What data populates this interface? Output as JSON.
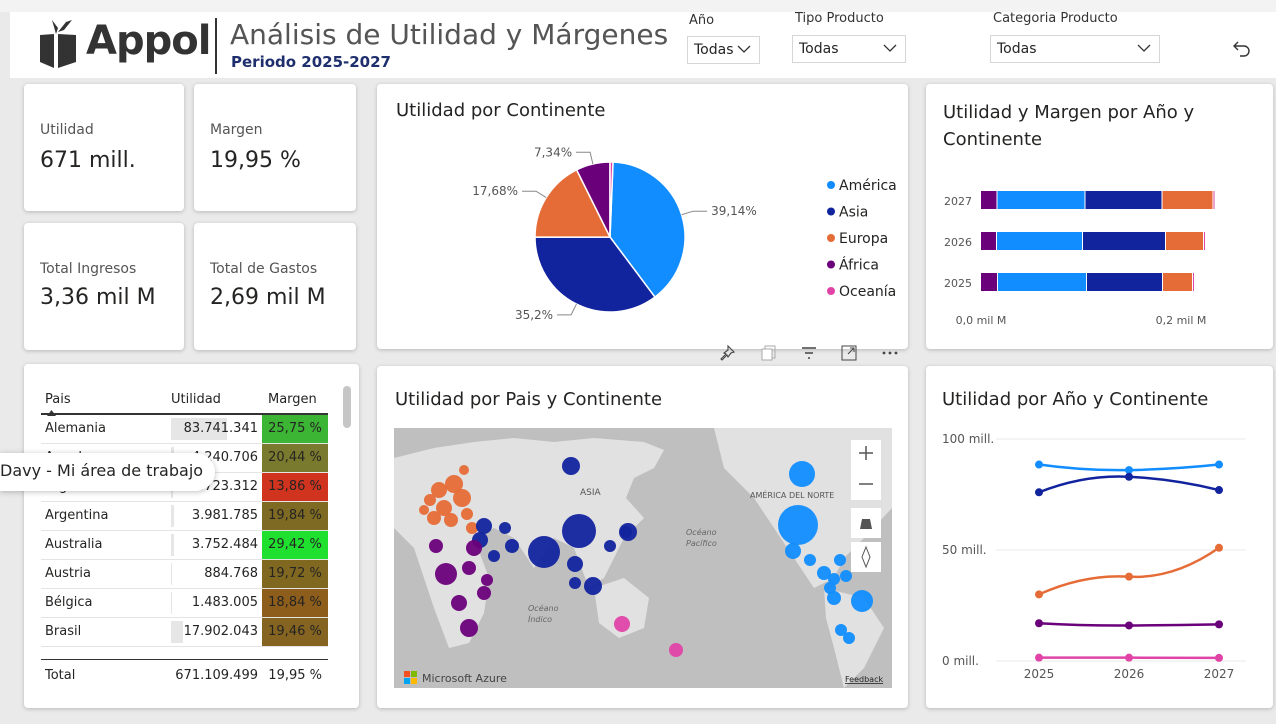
{
  "header": {
    "brand": "Appol",
    "title": "Análisis de Utilidad y Márgenes",
    "period": "Periodo 2025-2027"
  },
  "slicers": {
    "year": {
      "label": "Año",
      "value": "Todas"
    },
    "product_type": {
      "label": "Tipo Producto",
      "value": "Todas"
    },
    "category": {
      "label": "Categoria Producto",
      "value": "Todas"
    }
  },
  "kpis": {
    "utilidad": {
      "label": "Utilidad",
      "value": "671 mill."
    },
    "margen": {
      "label": "Margen",
      "value": "19,95 %"
    },
    "ingresos": {
      "label": "Total Ingresos",
      "value": "3,36 mil M"
    },
    "gastos": {
      "label": "Total de Gastos",
      "value": "2,69 mil M"
    }
  },
  "tooltip": "Davy - Mi área de trabajo",
  "table": {
    "headers": [
      "Pais",
      "Utilidad",
      "Margen"
    ],
    "rows": [
      {
        "pais": "Alemania",
        "utilidad": "83.741.341",
        "margen": "25,75 %",
        "bar": 0.62,
        "color": "#3cb534"
      },
      {
        "pais": "Angola",
        "utilidad": "4.240.706",
        "margen": "20,44 %",
        "bar": 0.03,
        "color": "#7a7a2e"
      },
      {
        "pais": "Argelia",
        "utilidad": "2.723.312",
        "margen": "13,86 %",
        "bar": 0.02,
        "color": "#d0341f"
      },
      {
        "pais": "Argentina",
        "utilidad": "3.981.785",
        "margen": "19,84 %",
        "bar": 0.03,
        "color": "#7e6a22"
      },
      {
        "pais": "Australia",
        "utilidad": "3.752.484",
        "margen": "29,42 %",
        "bar": 0.03,
        "color": "#1fe02f"
      },
      {
        "pais": "Austria",
        "utilidad": "884.768",
        "margen": "19,72 %",
        "bar": 0.01,
        "color": "#806820"
      },
      {
        "pais": "Bélgica",
        "utilidad": "1.483.005",
        "margen": "18,84 %",
        "bar": 0.01,
        "color": "#8d5d1b"
      },
      {
        "pais": "Brasil",
        "utilidad": "17.902.043",
        "margen": "19,46 %",
        "bar": 0.13,
        "color": "#846420"
      }
    ],
    "total": {
      "label": "Total",
      "utilidad": "671.109.499",
      "margen": "19,95 %"
    }
  },
  "colors": {
    "america": "#118dff",
    "asia": "#12239e",
    "europa": "#e66c37",
    "africa": "#6b007b",
    "oceania": "#e044a7"
  },
  "map": {
    "labels": [
      "ASIA",
      "AMÉRICA DEL NORTE",
      "Océano Pacífico",
      "Océano Índico"
    ],
    "attribution": "Microsoft Azure",
    "feedback": "Feedback"
  },
  "chart_data": [
    {
      "id": "pie",
      "type": "pie",
      "title": "Utilidad por Continente",
      "legend": "right",
      "slices": [
        {
          "name": "América",
          "value": 39.14,
          "label": "39,14%",
          "color": "#118dff"
        },
        {
          "name": "Asia",
          "value": 35.2,
          "label": "35,2%",
          "color": "#12239e"
        },
        {
          "name": "Europa",
          "value": 17.68,
          "label": "17,68%",
          "color": "#e66c37"
        },
        {
          "name": "África",
          "value": 7.34,
          "label": "7,34%",
          "color": "#6b007b"
        },
        {
          "name": "Oceanía",
          "value": 0.64,
          "label": "",
          "color": "#e044a7"
        }
      ]
    },
    {
      "id": "stackedbar",
      "type": "bar",
      "orientation": "horizontal",
      "stacked": true,
      "title": "Utilidad y Margen por Año y Continente",
      "categories": [
        "2027",
        "2026",
        "2025"
      ],
      "x_ticks": [
        {
          "value": 0,
          "label": "0,0 mil M"
        },
        {
          "value": 0.2,
          "label": "0,2 mil M"
        }
      ],
      "xlim": [
        0,
        0.27
      ],
      "series": [
        {
          "name": "África",
          "color": "#6b007b",
          "values": [
            0.0165,
            0.016,
            0.017
          ]
        },
        {
          "name": "América",
          "color": "#118dff",
          "values": [
            0.088,
            0.086,
            0.089
          ]
        },
        {
          "name": "Asia",
          "color": "#12239e",
          "values": [
            0.077,
            0.083,
            0.076
          ]
        },
        {
          "name": "Europa",
          "color": "#e66c37",
          "values": [
            0.051,
            0.038,
            0.03
          ]
        },
        {
          "name": "Oceanía",
          "color": "#e044a7",
          "values": [
            0.0015,
            0.0015,
            0.0014
          ]
        }
      ]
    },
    {
      "id": "line",
      "type": "line",
      "title": "Utilidad por Año y Continente",
      "x": [
        "2025",
        "2026",
        "2027"
      ],
      "y_ticks": [
        {
          "value": 0,
          "label": "0 mill."
        },
        {
          "value": 50,
          "label": "50 mill."
        },
        {
          "value": 100,
          "label": "100 mill."
        }
      ],
      "ylim": [
        0,
        100
      ],
      "series": [
        {
          "name": "América",
          "color": "#118dff",
          "values": [
            88.5,
            86,
            88.5
          ]
        },
        {
          "name": "Asia",
          "color": "#12239e",
          "values": [
            76,
            83,
            77
          ]
        },
        {
          "name": "Europa",
          "color": "#e66c37",
          "values": [
            30,
            38,
            51
          ]
        },
        {
          "name": "África",
          "color": "#6b007b",
          "values": [
            17,
            16,
            16.5
          ]
        },
        {
          "name": "Oceanía",
          "color": "#e044a7",
          "values": [
            1.5,
            1.5,
            1.4
          ]
        }
      ]
    }
  ]
}
